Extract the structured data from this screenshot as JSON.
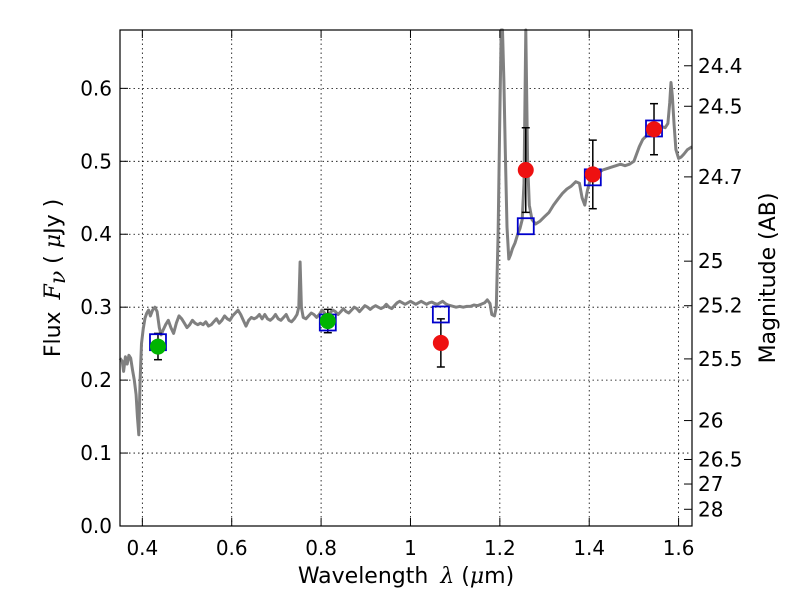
{
  "chart_data": {
    "type": "scatter",
    "title": "",
    "xlabel": {
      "prefix": "Wavelength",
      "symbol": "λ",
      "unit_open": " (",
      "unit_mu": "μ",
      "unit_rest": "m)"
    },
    "ylabel": {
      "prefix": "Flux",
      "symbol": "F",
      "subscript": "ν",
      "unit_open": " ( ",
      "unit_mu": "μ",
      "unit_rest": "Jy )"
    },
    "y2label": "Magnitude (AB)",
    "xlim": [
      0.35,
      1.63
    ],
    "ylim": [
      0.0,
      0.68
    ],
    "grid": true,
    "legend": "none",
    "x_ticks": [
      {
        "v": 0.4,
        "label": "0.4"
      },
      {
        "v": 0.6,
        "label": "0.6"
      },
      {
        "v": 0.8,
        "label": "0.8"
      },
      {
        "v": 1.0,
        "label": "1"
      },
      {
        "v": 1.2,
        "label": "1.2"
      },
      {
        "v": 1.4,
        "label": "1.4"
      },
      {
        "v": 1.6,
        "label": "1.6"
      }
    ],
    "y_ticks": [
      {
        "v": 0.0,
        "label": "0.0"
      },
      {
        "v": 0.1,
        "label": "0.1"
      },
      {
        "v": 0.2,
        "label": "0.2"
      },
      {
        "v": 0.3,
        "label": "0.3"
      },
      {
        "v": 0.4,
        "label": "0.4"
      },
      {
        "v": 0.5,
        "label": "0.5"
      },
      {
        "v": 0.6,
        "label": "0.6"
      }
    ],
    "mag_ticks": [
      {
        "mag": 24.4,
        "label": "24.4"
      },
      {
        "mag": 24.5,
        "label": "24.5"
      },
      {
        "mag": 24.7,
        "label": "24.7"
      },
      {
        "mag": 25.0,
        "label": "25"
      },
      {
        "mag": 25.2,
        "label": "25.2"
      },
      {
        "mag": 25.5,
        "label": "25.5"
      },
      {
        "mag": 26.0,
        "label": "26"
      },
      {
        "mag": 26.5,
        "label": "26.5"
      },
      {
        "mag": 27.0,
        "label": "27"
      },
      {
        "mag": 28.0,
        "label": "28"
      }
    ],
    "template_spectrum": {
      "name": "",
      "color": "#808080",
      "points": [
        [
          0.35,
          0.23
        ],
        [
          0.355,
          0.226
        ],
        [
          0.358,
          0.212
        ],
        [
          0.362,
          0.232
        ],
        [
          0.366,
          0.222
        ],
        [
          0.37,
          0.234
        ],
        [
          0.374,
          0.23
        ],
        [
          0.378,
          0.214
        ],
        [
          0.382,
          0.2
        ],
        [
          0.386,
          0.18
        ],
        [
          0.389,
          0.15
        ],
        [
          0.392,
          0.125
        ],
        [
          0.395,
          0.2
        ],
        [
          0.398,
          0.25
        ],
        [
          0.402,
          0.27
        ],
        [
          0.406,
          0.285
        ],
        [
          0.41,
          0.292
        ],
        [
          0.414,
          0.296
        ],
        [
          0.418,
          0.288
        ],
        [
          0.423,
          0.296
        ],
        [
          0.428,
          0.3
        ],
        [
          0.433,
          0.294
        ],
        [
          0.438,
          0.272
        ],
        [
          0.442,
          0.262
        ],
        [
          0.446,
          0.268
        ],
        [
          0.452,
          0.276
        ],
        [
          0.458,
          0.282
        ],
        [
          0.464,
          0.272
        ],
        [
          0.47,
          0.264
        ],
        [
          0.476,
          0.278
        ],
        [
          0.482,
          0.288
        ],
        [
          0.488,
          0.284
        ],
        [
          0.494,
          0.278
        ],
        [
          0.5,
          0.272
        ],
        [
          0.506,
          0.276
        ],
        [
          0.512,
          0.282
        ],
        [
          0.518,
          0.278
        ],
        [
          0.524,
          0.276
        ],
        [
          0.53,
          0.278
        ],
        [
          0.536,
          0.276
        ],
        [
          0.542,
          0.28
        ],
        [
          0.548,
          0.274
        ],
        [
          0.554,
          0.276
        ],
        [
          0.56,
          0.28
        ],
        [
          0.566,
          0.284
        ],
        [
          0.572,
          0.278
        ],
        [
          0.578,
          0.282
        ],
        [
          0.584,
          0.288
        ],
        [
          0.59,
          0.284
        ],
        [
          0.596,
          0.282
        ],
        [
          0.602,
          0.288
        ],
        [
          0.608,
          0.292
        ],
        [
          0.614,
          0.296
        ],
        [
          0.62,
          0.29
        ],
        [
          0.626,
          0.282
        ],
        [
          0.632,
          0.274
        ],
        [
          0.638,
          0.282
        ],
        [
          0.644,
          0.286
        ],
        [
          0.65,
          0.284
        ],
        [
          0.656,
          0.286
        ],
        [
          0.662,
          0.29
        ],
        [
          0.668,
          0.284
        ],
        [
          0.674,
          0.29
        ],
        [
          0.68,
          0.284
        ],
        [
          0.686,
          0.282
        ],
        [
          0.692,
          0.285
        ],
        [
          0.698,
          0.29
        ],
        [
          0.704,
          0.284
        ],
        [
          0.71,
          0.282
        ],
        [
          0.716,
          0.286
        ],
        [
          0.722,
          0.29
        ],
        [
          0.728,
          0.282
        ],
        [
          0.734,
          0.28
        ],
        [
          0.74,
          0.284
        ],
        [
          0.746,
          0.29
        ],
        [
          0.75,
          0.3
        ],
        [
          0.753,
          0.362
        ],
        [
          0.756,
          0.3
        ],
        [
          0.76,
          0.286
        ],
        [
          0.766,
          0.284
        ],
        [
          0.772,
          0.288
        ],
        [
          0.778,
          0.292
        ],
        [
          0.784,
          0.29
        ],
        [
          0.79,
          0.286
        ],
        [
          0.796,
          0.29
        ],
        [
          0.802,
          0.296
        ],
        [
          0.808,
          0.292
        ],
        [
          0.814,
          0.288
        ],
        [
          0.82,
          0.292
        ],
        [
          0.826,
          0.296
        ],
        [
          0.832,
          0.294
        ],
        [
          0.838,
          0.29
        ],
        [
          0.844,
          0.294
        ],
        [
          0.85,
          0.298
        ],
        [
          0.856,
          0.294
        ],
        [
          0.862,
          0.292
        ],
        [
          0.868,
          0.296
        ],
        [
          0.874,
          0.3
        ],
        [
          0.88,
          0.298
        ],
        [
          0.886,
          0.294
        ],
        [
          0.892,
          0.298
        ],
        [
          0.898,
          0.302
        ],
        [
          0.904,
          0.3
        ],
        [
          0.91,
          0.297
        ],
        [
          0.916,
          0.3
        ],
        [
          0.922,
          0.302
        ],
        [
          0.928,
          0.3
        ],
        [
          0.934,
          0.298
        ],
        [
          0.94,
          0.3
        ],
        [
          0.946,
          0.304
        ],
        [
          0.952,
          0.3
        ],
        [
          0.958,
          0.298
        ],
        [
          0.964,
          0.302
        ],
        [
          0.97,
          0.306
        ],
        [
          0.976,
          0.308
        ],
        [
          0.982,
          0.306
        ],
        [
          0.988,
          0.304
        ],
        [
          0.994,
          0.306
        ],
        [
          1.0,
          0.308
        ],
        [
          1.006,
          0.306
        ],
        [
          1.012,
          0.304
        ],
        [
          1.018,
          0.306
        ],
        [
          1.024,
          0.308
        ],
        [
          1.03,
          0.306
        ],
        [
          1.036,
          0.304
        ],
        [
          1.042,
          0.306
        ],
        [
          1.048,
          0.307
        ],
        [
          1.054,
          0.305
        ],
        [
          1.06,
          0.304
        ],
        [
          1.066,
          0.306
        ],
        [
          1.072,
          0.308
        ],
        [
          1.078,
          0.305
        ],
        [
          1.084,
          0.303
        ],
        [
          1.09,
          0.302
        ],
        [
          1.096,
          0.301
        ],
        [
          1.102,
          0.3
        ],
        [
          1.11,
          0.301
        ],
        [
          1.118,
          0.3
        ],
        [
          1.126,
          0.301
        ],
        [
          1.134,
          0.301
        ],
        [
          1.142,
          0.303
        ],
        [
          1.15,
          0.302
        ],
        [
          1.158,
          0.304
        ],
        [
          1.166,
          0.306
        ],
        [
          1.172,
          0.31
        ],
        [
          1.178,
          0.305
        ],
        [
          1.182,
          0.29
        ],
        [
          1.188,
          0.288
        ],
        [
          1.192,
          0.3
        ],
        [
          1.196,
          0.4
        ],
        [
          1.2,
          0.56
        ],
        [
          1.203,
          0.68
        ],
        [
          1.206,
          0.68
        ],
        [
          1.209,
          0.61
        ],
        [
          1.212,
          0.52
        ],
        [
          1.216,
          0.41
        ],
        [
          1.22,
          0.366
        ],
        [
          1.224,
          0.372
        ],
        [
          1.228,
          0.38
        ],
        [
          1.234,
          0.388
        ],
        [
          1.24,
          0.4
        ],
        [
          1.245,
          0.408
        ],
        [
          1.25,
          0.42
        ],
        [
          1.254,
          0.47
        ],
        [
          1.258,
          0.68
        ],
        [
          1.262,
          0.5
        ],
        [
          1.266,
          0.44
        ],
        [
          1.272,
          0.42
        ],
        [
          1.28,
          0.414
        ],
        [
          1.29,
          0.418
        ],
        [
          1.3,
          0.424
        ],
        [
          1.31,
          0.43
        ],
        [
          1.32,
          0.44
        ],
        [
          1.33,
          0.448
        ],
        [
          1.34,
          0.456
        ],
        [
          1.35,
          0.462
        ],
        [
          1.36,
          0.466
        ],
        [
          1.37,
          0.472
        ],
        [
          1.378,
          0.47
        ],
        [
          1.384,
          0.45
        ],
        [
          1.39,
          0.44
        ],
        [
          1.396,
          0.46
        ],
        [
          1.402,
          0.474
        ],
        [
          1.41,
          0.48
        ],
        [
          1.42,
          0.484
        ],
        [
          1.43,
          0.488
        ],
        [
          1.44,
          0.49
        ],
        [
          1.45,
          0.492
        ],
        [
          1.46,
          0.494
        ],
        [
          1.47,
          0.496
        ],
        [
          1.48,
          0.494
        ],
        [
          1.49,
          0.496
        ],
        [
          1.5,
          0.5
        ],
        [
          1.506,
          0.51
        ],
        [
          1.512,
          0.52
        ],
        [
          1.52,
          0.53
        ],
        [
          1.53,
          0.536
        ],
        [
          1.54,
          0.54
        ],
        [
          1.55,
          0.544
        ],
        [
          1.56,
          0.548
        ],
        [
          1.57,
          0.546
        ],
        [
          1.576,
          0.552
        ],
        [
          1.58,
          0.58
        ],
        [
          1.583,
          0.608
        ],
        [
          1.586,
          0.59
        ],
        [
          1.59,
          0.55
        ],
        [
          1.594,
          0.516
        ],
        [
          1.6,
          0.504
        ],
        [
          1.606,
          0.506
        ],
        [
          1.612,
          0.51
        ],
        [
          1.62,
          0.516
        ],
        [
          1.63,
          0.52
        ]
      ]
    },
    "series": [
      {
        "name": "",
        "marker": "square-open",
        "color": "#0000cc",
        "x": [
          0.435,
          0.815,
          1.068,
          1.258,
          1.408,
          1.545
        ],
        "y": [
          0.252,
          0.279,
          0.29,
          0.411,
          0.478,
          0.545
        ]
      },
      {
        "name": "",
        "marker": "circle",
        "color": "#00b400",
        "x": [
          0.435,
          0.815
        ],
        "y": [
          0.246,
          0.281
        ],
        "yerr": [
          0.018,
          0.016
        ]
      },
      {
        "name": "",
        "marker": "circle",
        "color": "#ee1111",
        "x": [
          1.068,
          1.258,
          1.408,
          1.545
        ],
        "y": [
          0.251,
          0.488,
          0.482,
          0.544
        ],
        "yerr": [
          0.033,
          0.058,
          0.047,
          0.035
        ]
      }
    ]
  }
}
